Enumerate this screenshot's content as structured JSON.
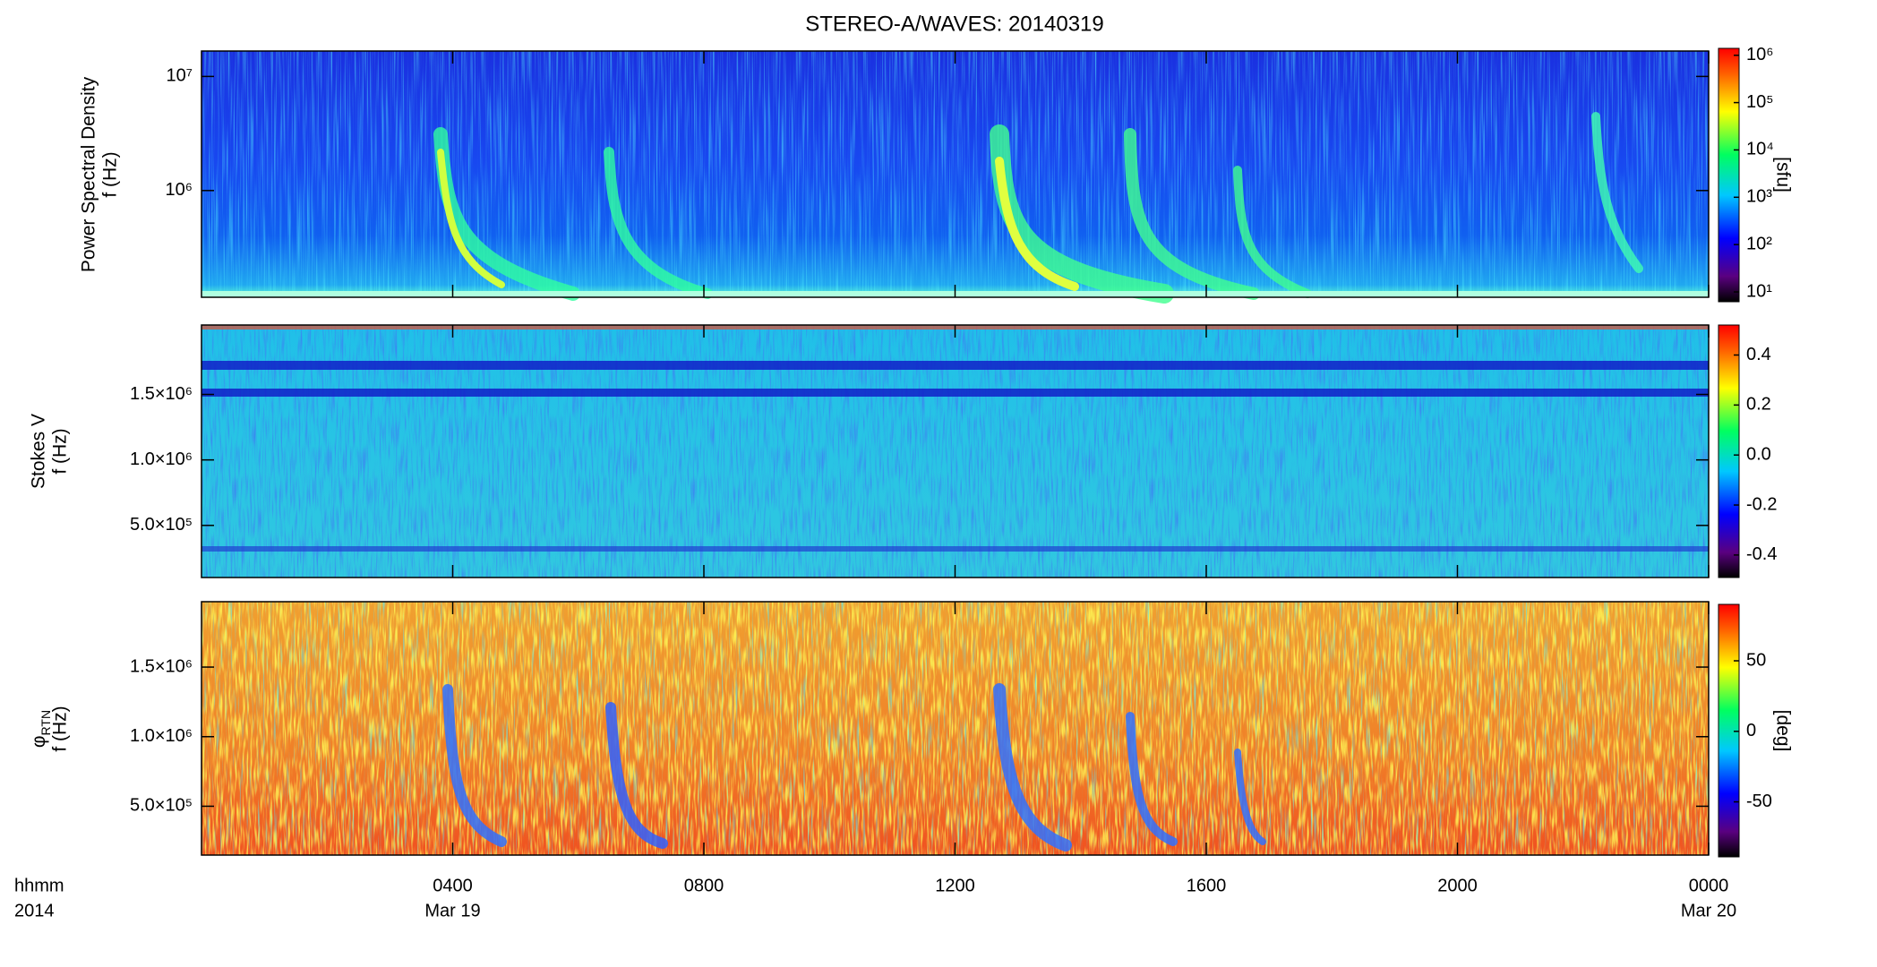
{
  "chart_data": [
    {
      "type": "heatmap",
      "title": "STEREO-A/WAVES: 20140319",
      "ylabel": "Power Spectral Density",
      "ylabel2": "f (Hz)",
      "log_y": true,
      "ylim": [
        116000,
        16700000
      ],
      "yticks": [
        {
          "value": 1000000,
          "label": "10⁶"
        },
        {
          "value": 10000000,
          "label": "10⁷"
        }
      ],
      "colorbar_log": true,
      "clim": [
        6.2,
        1400000
      ],
      "cticks": [
        {
          "value": 10,
          "label": "10¹"
        },
        {
          "value": 100,
          "label": "10²"
        },
        {
          "value": 1000,
          "label": "10³"
        },
        {
          "value": 10000,
          "label": "10⁴"
        },
        {
          "value": 100000,
          "label": "10⁵"
        },
        {
          "value": 1000000,
          "label": "10⁶"
        }
      ],
      "colorbar_label": "[sfu]"
    },
    {
      "type": "heatmap",
      "ylabel": "Stokes V",
      "ylabel2": "f (Hz)",
      "log_y": false,
      "ylim": [
        102000,
        2030000
      ],
      "yticks": [
        {
          "value": 500000,
          "label": "5.0×10⁵"
        },
        {
          "value": 1000000,
          "label": "1.0×10⁶"
        },
        {
          "value": 1500000,
          "label": "1.5×10⁶"
        }
      ],
      "colorbar_log": false,
      "clim": [
        -0.49,
        0.52
      ],
      "cticks": [
        -0.4,
        -0.2,
        {
          "value": 0,
          "label": "0.0"
        },
        0.2,
        0.4
      ]
    },
    {
      "type": "heatmap",
      "ylabel": "φ",
      "ylabel_sub": "RTN",
      "ylabel2": "f (Hz)",
      "log_y": false,
      "ylim": [
        149000,
        1970000
      ],
      "yticks": [
        {
          "value": 500000,
          "label": "5.0×10⁵"
        },
        {
          "value": 1000000,
          "label": "1.0×10⁶"
        },
        {
          "value": 1500000,
          "label": "1.5×10⁶"
        }
      ],
      "colorbar_log": false,
      "clim": [
        -89,
        90
      ],
      "cticks": [
        -50,
        0,
        50
      ],
      "colorbar_label": "[deg]",
      "xlim": [
        0,
        24
      ],
      "xticks": [
        {
          "value": 4,
          "label": "0400"
        },
        {
          "value": 8,
          "label": "0800"
        },
        {
          "value": 12,
          "label": "1200"
        },
        {
          "value": 16,
          "label": "1600"
        },
        {
          "value": 20,
          "label": "2000"
        },
        {
          "value": 24,
          "label": "0000"
        }
      ],
      "xtick_dates": [
        {
          "value": 4,
          "label": "Mar 19"
        },
        {
          "value": 24,
          "label": "Mar 20"
        }
      ],
      "x_corner_labels": [
        "hhmm",
        "2014"
      ]
    }
  ]
}
